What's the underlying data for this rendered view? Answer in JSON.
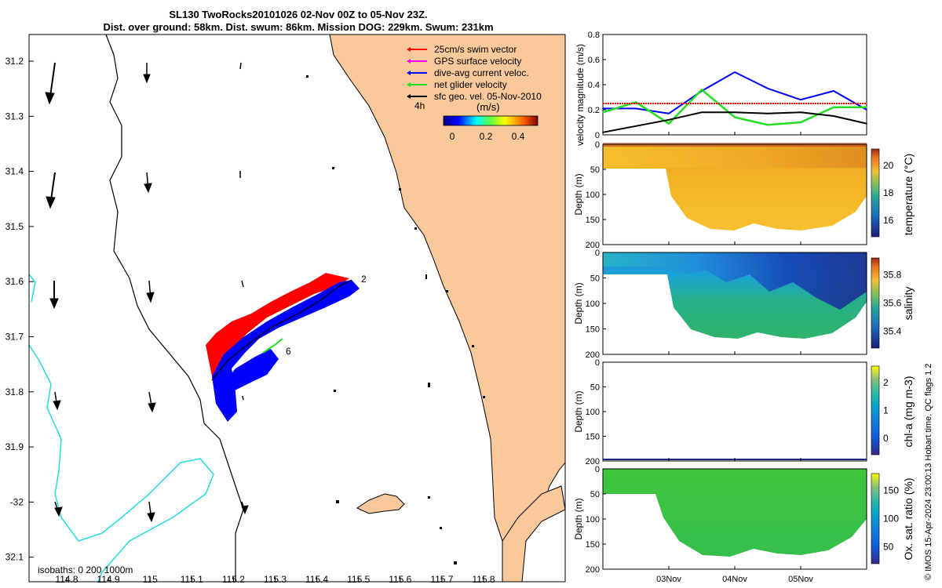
{
  "header": {
    "title_line1": "SL130 TwoRocks20101026 02-Nov 00Z to 05-Nov 23Z.",
    "title_line2": "Dist. over ground: 58km. Dist. swum: 86km. Mission DOG: 229km. Swum: 231km"
  },
  "side_text": "© IMOS 15-Apr-2024 23:00:13 Hobart time. QC flags 1  2",
  "colors": {
    "land": "#f9c89b",
    "coast": "#000000",
    "isobath": "#26d9e0",
    "swim": "#ff0000",
    "gps": "#ff00ff",
    "current": "#0000ff",
    "net": "#22dd22",
    "geo": "#000000"
  },
  "map": {
    "lon_ticks": [
      "114.8",
      "114.9",
      "115",
      "115.1",
      "115.2",
      "115.3",
      "115.4",
      "115.5",
      "115.6",
      "115.7",
      "115.8"
    ],
    "lat_ticks": [
      "31.2",
      "31.3",
      "31.4",
      "31.5",
      "31.6",
      "31.7",
      "31.8",
      "31.9",
      "-32",
      "32.1"
    ],
    "legend": [
      {
        "label": "25cm/s swim vector",
        "color_key": "swim"
      },
      {
        "label": "GPS surface velocity",
        "color_key": "gps"
      },
      {
        "label": "dive-avg current veloc.",
        "color_key": "current"
      },
      {
        "label": "net glider velocity",
        "color_key": "net"
      },
      {
        "label": "sfc geo. vel. 05-Nov-2010",
        "color_key": "geo"
      }
    ],
    "time_label": "4h",
    "colorbar_unit": "(m/s)",
    "colorbar_ticks": [
      "0",
      "0.2",
      "0.4"
    ],
    "track_labels": [
      "2",
      "6"
    ],
    "isobaths_text": "isobaths: 0    200   1000m"
  },
  "chart_data": [
    {
      "type": "line",
      "title": "",
      "ylabel": "velocity magnitude (m/s)",
      "ylim": [
        0,
        0.8
      ],
      "y_ticks": [
        "0",
        "0.2",
        "0.4",
        "0.6",
        "0.8"
      ],
      "x": [
        0,
        0.5,
        1,
        1.5,
        2,
        2.5,
        3,
        3.5,
        4
      ],
      "series": [
        {
          "name": "dive-avg current veloc.",
          "values": [
            0.21,
            0.21,
            0.17,
            0.35,
            0.5,
            0.37,
            0.28,
            0.35,
            0.2
          ]
        },
        {
          "name": "net glider velocity",
          "values": [
            0.18,
            0.26,
            0.09,
            0.36,
            0.14,
            0.08,
            0.1,
            0.22,
            0.22
          ]
        },
        {
          "name": "25cm/s swim vector",
          "values": [
            0.25,
            0.25,
            0.25,
            0.25,
            0.25,
            0.25,
            0.25,
            0.25,
            0.25
          ]
        },
        {
          "name": "sfc geo. vel.",
          "values": [
            0.02,
            0.07,
            0.12,
            0.18,
            0.18,
            0.17,
            0.18,
            0.15,
            0.09
          ]
        }
      ]
    },
    {
      "type": "heatmap",
      "ylabel": "Depth (m)",
      "y_ticks": [
        "0",
        "50",
        "100",
        "150",
        "200"
      ],
      "colorbar_label": "temperature (°C)",
      "colorbar_ticks": [
        "20",
        "18",
        "16"
      ],
      "clim": [
        15,
        21
      ]
    },
    {
      "type": "heatmap",
      "ylabel": "Depth (m)",
      "y_ticks": [
        "0",
        "50",
        "100",
        "150",
        "200"
      ],
      "colorbar_label": "salinity",
      "colorbar_ticks": [
        "35.8",
        "35.6",
        "35.4"
      ],
      "clim": [
        35.3,
        35.9
      ]
    },
    {
      "type": "heatmap",
      "ylabel": "Depth (m)",
      "y_ticks": [
        "0",
        "50",
        "100",
        "150",
        "200"
      ],
      "colorbar_label": "chl-a (mg m-3)",
      "colorbar_ticks": [
        "2",
        "1",
        "0"
      ],
      "clim": [
        0,
        2
      ]
    },
    {
      "type": "heatmap",
      "ylabel": "Depth (m)",
      "y_ticks": [
        "0",
        "50",
        "100",
        "150",
        "200"
      ],
      "x_ticks": [
        "03Nov",
        "04Nov",
        "05Nov"
      ],
      "colorbar_label": "Ox. sat. ratio (%)",
      "colorbar_ticks": [
        "150",
        "100",
        "50"
      ],
      "clim": [
        25,
        175
      ]
    }
  ]
}
